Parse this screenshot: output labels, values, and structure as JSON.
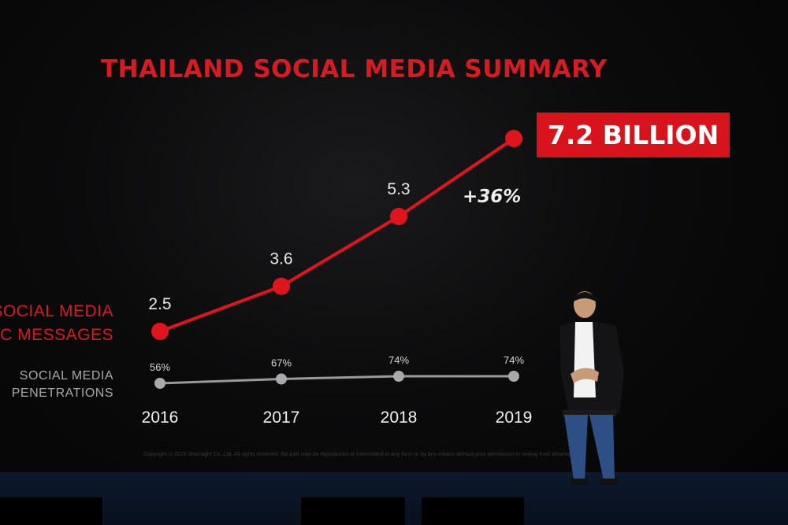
{
  "slide": {
    "title": "THAILAND SOCIAL MEDIA SUMMARY",
    "badge": "7.2 BILLION",
    "growth_label": "+36%",
    "footer_note": "Copyright © 2020 Wisesight Co.,Ltd. All rights reserved. No part may be reproduced or transmitted in any form or by any means without prior permission in writing from Wisesight."
  },
  "series_labels": {
    "messages_line1": "SOCIAL MEDIA",
    "messages_line2": "LIC MESSAGES",
    "penetration_line1": "SOCIAL MEDIA",
    "penetration_line2": "PENETRATIONS"
  },
  "chart_data": {
    "type": "line",
    "title": "THAILAND SOCIAL MEDIA SUMMARY",
    "categories": [
      "2016",
      "2017",
      "2018",
      "2019"
    ],
    "series": [
      {
        "name": "SOCIAL MEDIA LIC MESSAGES",
        "values": [
          2.5,
          3.6,
          5.3,
          7.2
        ],
        "labels": [
          "2.5",
          "3.6",
          "5.3",
          ""
        ],
        "color": "#e0141c"
      },
      {
        "name": "SOCIAL MEDIA PENETRATIONS",
        "values": [
          56,
          67,
          74,
          74
        ],
        "labels": [
          "56%",
          "67%",
          "74%",
          "74%"
        ],
        "color": "#9a9a9a"
      }
    ],
    "grid": false,
    "legend": "left"
  },
  "colors": {
    "accent": "#d8131b",
    "background": "#050505",
    "secondary": "#9a9a9a"
  }
}
